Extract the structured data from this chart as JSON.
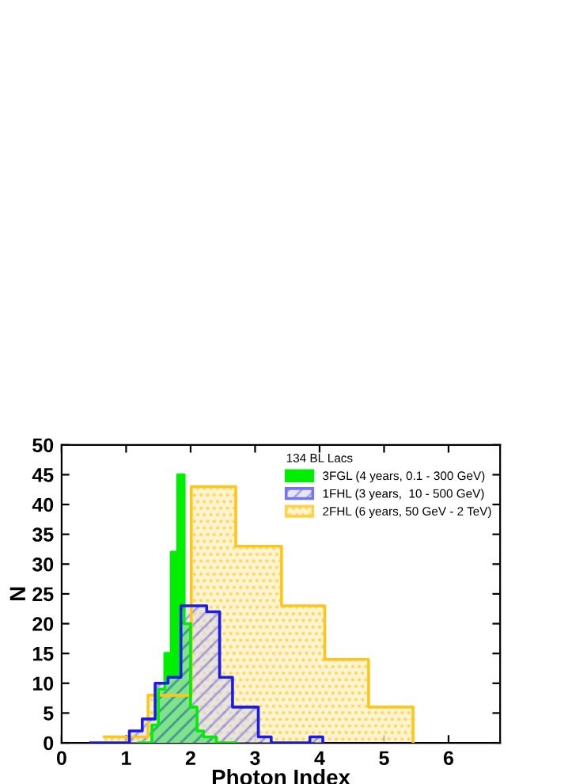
{
  "chart_data": {
    "type": "area",
    "xlabel": "Photon Index",
    "ylabel": "N",
    "legend_title": "134 BL Lacs",
    "series": [
      {
        "name": "3FGL (4 years, 0.1 - 300 GeV)",
        "color": "#00ee00",
        "x": [
          1.2,
          1.3,
          1.4,
          1.5,
          1.6,
          1.7,
          1.8,
          1.9,
          2.0,
          2.1,
          2.2,
          2.3,
          2.4,
          2.5,
          2.6,
          2.7
        ],
        "values": [
          0,
          0,
          3,
          9,
          15,
          32,
          45,
          20,
          6,
          2,
          1,
          1,
          0,
          0,
          0,
          0
        ]
      },
      {
        "name": "1FHL (3 years,  10 - 500 GeV)",
        "color": "#1a1aee",
        "x": [
          0.45,
          0.65,
          0.85,
          1.05,
          1.25,
          1.45,
          1.65,
          1.85,
          2.05,
          2.25,
          2.45,
          2.65,
          2.85,
          3.05,
          3.25,
          3.45,
          3.65,
          3.85,
          4.05
        ],
        "values": [
          0,
          0,
          0,
          2,
          4,
          10,
          11,
          23,
          23,
          22,
          11,
          6,
          6,
          1,
          0,
          0,
          0,
          1,
          0
        ]
      },
      {
        "name": "2FHL (6 years, 50 GeV - 2 TeV)",
        "color": "#ffc61a",
        "x": [
          0.66,
          1.34,
          2.01,
          2.7,
          3.41,
          4.08,
          4.76,
          5.45
        ],
        "values": [
          1,
          8,
          43,
          33,
          23,
          14,
          6,
          0
        ]
      }
    ],
    "xlim": [
      0,
      6.8
    ],
    "xticks": [
      0,
      1,
      2,
      3,
      4,
      5,
      6
    ],
    "ylim": [
      0,
      50
    ],
    "yticks": [
      0,
      5,
      10,
      15,
      20,
      25,
      30,
      35,
      40,
      45,
      50
    ],
    "legend": "top right"
  }
}
